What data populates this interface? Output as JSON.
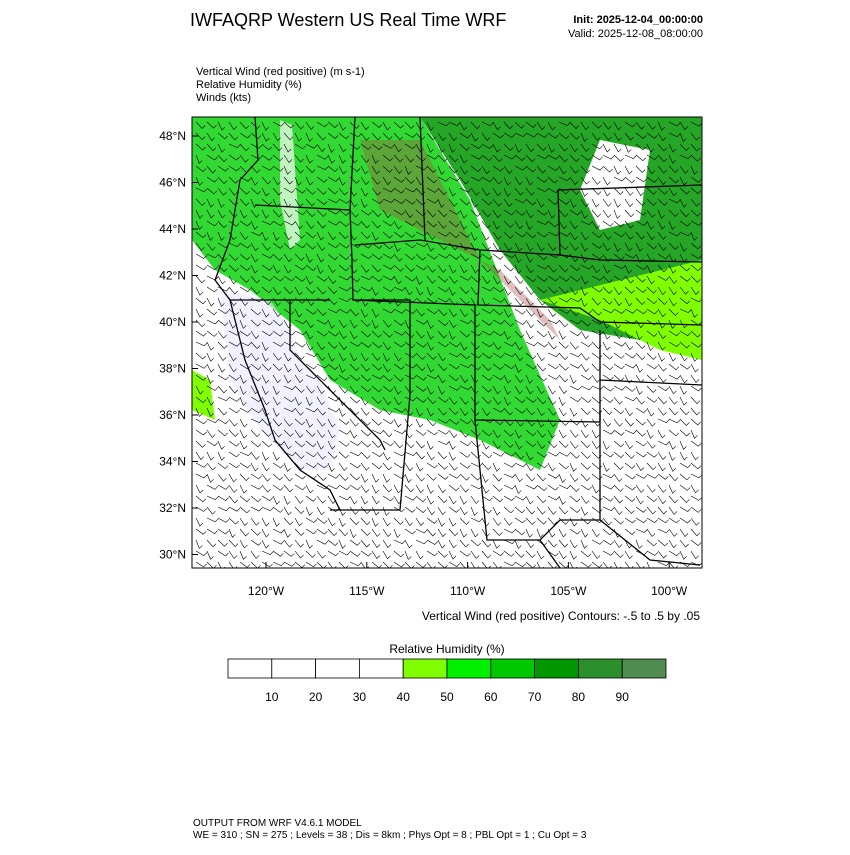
{
  "header": {
    "title": "IWFAQRP Western US Real Time WRF",
    "init": "Init: 2025-12-04_00:00:00",
    "valid": "Valid: 2025-12-08_08:00:00"
  },
  "fields": [
    "Vertical Wind (red positive)   (m s-1)",
    "Relative Humidity   (%)",
    "Winds   (kts)"
  ],
  "map": {
    "lat_labels": [
      "48°N",
      "46°N",
      "44°N",
      "42°N",
      "40°N",
      "38°N",
      "36°N",
      "34°N",
      "32°N",
      "30°N"
    ],
    "lon_labels": [
      "120°W",
      "115°W",
      "110°W",
      "105°W",
      "100°W"
    ],
    "contour_note": "Vertical Wind (red positive) Contours: -.5 to .5 by .05"
  },
  "colorbar": {
    "title": "Relative Humidity  (%)",
    "labels": [
      "10",
      "20",
      "30",
      "40",
      "50",
      "60",
      "70",
      "80",
      "90"
    ],
    "colors": [
      "#ffffff",
      "#ffffff",
      "#ffffff",
      "#ffffff",
      "#80ff00",
      "#00f000",
      "#00c800",
      "#009600",
      "#2b8f2b",
      "#508c50"
    ]
  },
  "footer": [
    "OUTPUT FROM WRF V4.6.1 MODEL",
    "WE = 310 ; SN = 275 ; Levels = 38 ; Dis = 8km ; Phys Opt = 8 ; PBL Opt = 1 ; Cu Opt = 3"
  ]
}
